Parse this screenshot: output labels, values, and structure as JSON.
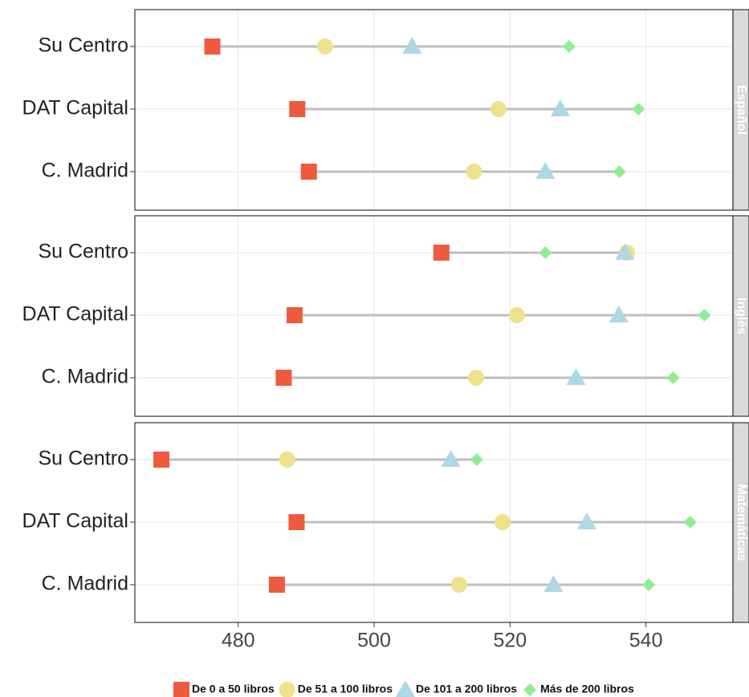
{
  "chart_data": {
    "type": "dot",
    "facets": [
      "Español",
      "Inglés",
      "Matemáticas"
    ],
    "categories": [
      "Su Centro",
      "DAT Capital",
      "C. Madrid"
    ],
    "series": [
      {
        "name": "De 0 a 50 libros",
        "color": "#EE5A3C",
        "marker": "square",
        "values": [
          [
            476.2,
            488.7,
            490.4
          ],
          [
            509.9,
            488.3,
            486.7
          ],
          [
            468.7,
            488.6,
            485.7
          ]
        ]
      },
      {
        "name": "De 51 a 100 libros",
        "color": "#EEE28A",
        "marker": "circle",
        "values": [
          [
            492.8,
            518.3,
            514.7
          ],
          [
            537.2,
            521.0,
            515.0
          ],
          [
            487.2,
            518.9,
            512.5
          ]
        ]
      },
      {
        "name": "De 101 a 200 libros",
        "color": "#ADD8E6",
        "marker": "triangle",
        "values": [
          [
            505.6,
            527.4,
            525.2
          ],
          [
            536.9,
            536.0,
            529.7
          ],
          [
            511.3,
            531.3,
            526.4
          ]
        ]
      },
      {
        "name": "Más de 200 libros",
        "color": "#90EE90",
        "marker": "diamond",
        "values": [
          [
            528.7,
            538.9,
            536.1
          ],
          [
            525.2,
            548.6,
            544.0
          ],
          [
            515.1,
            546.5,
            540.4
          ]
        ]
      }
    ],
    "xlim": [
      464.8,
      552.8
    ],
    "xticks": [
      480,
      500,
      520,
      540
    ],
    "grid": true
  }
}
